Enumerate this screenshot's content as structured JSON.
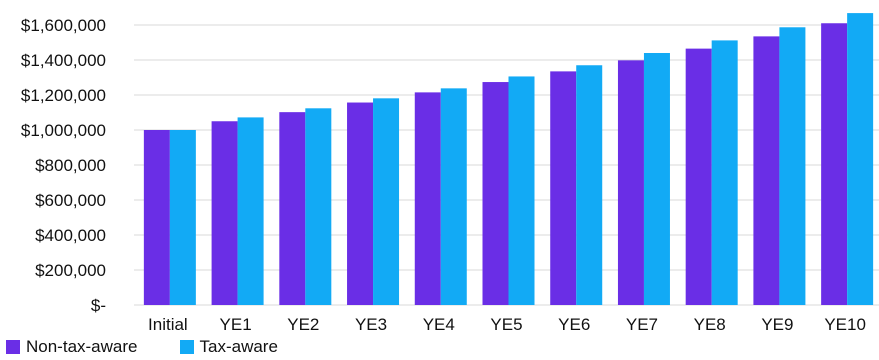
{
  "chart_data": {
    "type": "bar",
    "title": "",
    "xlabel": "",
    "ylabel": "",
    "categories": [
      "Initial",
      "YE1",
      "YE2",
      "YE3",
      "YE4",
      "YE5",
      "YE6",
      "YE7",
      "YE8",
      "YE9",
      "YE10"
    ],
    "series": [
      {
        "name": "Non-tax-aware",
        "color": "#6a2ee6",
        "values": [
          1000000,
          1050000,
          1102000,
          1157000,
          1215000,
          1274000,
          1335000,
          1398000,
          1465000,
          1535000,
          1610000
        ]
      },
      {
        "name": "Tax-aware",
        "color": "#12aaf5",
        "values": [
          1000000,
          1072000,
          1124000,
          1181000,
          1238000,
          1306000,
          1370000,
          1440000,
          1512000,
          1587000,
          1668000
        ]
      }
    ],
    "ylim": [
      0,
      1600000
    ],
    "yticks": [
      0,
      200000,
      400000,
      600000,
      800000,
      1000000,
      1200000,
      1400000,
      1600000
    ],
    "ytick_labels": [
      "$-",
      "$200,000",
      "$400,000",
      "$600,000",
      "$800,000",
      "$1,000,000",
      "$1,200,000",
      "$1,400,000",
      "$1,600,000"
    ],
    "grid": true,
    "legend": "bottom-left"
  }
}
